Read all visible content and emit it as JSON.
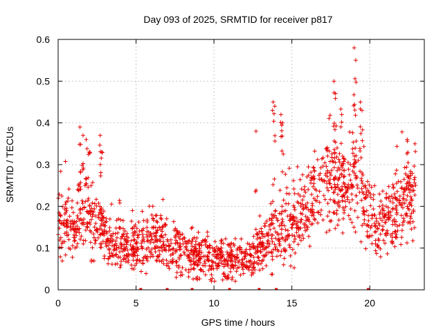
{
  "chart_data": {
    "type": "scatter",
    "title": "Day 093 of 2025, SRMTID for receiver p817",
    "xlabel": "GPS time / hours",
    "ylabel": "SRMTID / TECUs",
    "xlim": [
      0,
      23.5
    ],
    "ylim": [
      0,
      0.6
    ],
    "xticks": [
      0,
      5,
      10,
      15,
      20
    ],
    "xtick_labels": [
      "0",
      "5",
      "10",
      "15",
      "20"
    ],
    "yticks": [
      0,
      0.1,
      0.2,
      0.3,
      0.4,
      0.5,
      0.6
    ],
    "ytick_labels": [
      "0",
      "0.1",
      "0.2",
      "0.3",
      "0.4",
      "0.5",
      "0.6"
    ],
    "grid": true,
    "marker": "+",
    "color": "#e60000",
    "trend_hours": [
      0,
      0.5,
      1,
      1.5,
      2,
      2.5,
      3,
      3.5,
      4,
      4.5,
      5,
      5.5,
      6,
      6.5,
      7,
      7.5,
      8,
      8.5,
      9,
      9.5,
      10,
      10.5,
      11,
      11.5,
      12,
      12.5,
      13,
      13.5,
      14,
      14.5,
      15,
      15.5,
      16,
      16.5,
      17,
      17.5,
      18,
      18.5,
      19,
      19.5,
      20,
      20.5,
      21,
      21.5,
      22,
      22.5
    ],
    "trend_values": [
      0.16,
      0.15,
      0.14,
      0.2,
      0.17,
      0.15,
      0.13,
      0.11,
      0.12,
      0.11,
      0.1,
      0.1,
      0.12,
      0.12,
      0.11,
      0.1,
      0.1,
      0.09,
      0.08,
      0.08,
      0.08,
      0.08,
      0.07,
      0.07,
      0.07,
      0.08,
      0.1,
      0.12,
      0.13,
      0.14,
      0.15,
      0.18,
      0.21,
      0.23,
      0.25,
      0.27,
      0.25,
      0.24,
      0.26,
      0.22,
      0.18,
      0.15,
      0.16,
      0.18,
      0.2,
      0.2
    ],
    "spikes": [
      {
        "x": 1.4,
        "y": 0.39
      },
      {
        "x": 1.6,
        "y": 0.37
      },
      {
        "x": 1.8,
        "y": 0.36
      },
      {
        "x": 2.0,
        "y": 0.33
      },
      {
        "x": 2.7,
        "y": 0.37
      },
      {
        "x": 2.8,
        "y": 0.33
      },
      {
        "x": 12.7,
        "y": 0.38
      },
      {
        "x": 13.8,
        "y": 0.45
      },
      {
        "x": 13.9,
        "y": 0.44
      },
      {
        "x": 14.3,
        "y": 0.42
      },
      {
        "x": 14.4,
        "y": 0.4
      },
      {
        "x": 17.7,
        "y": 0.5
      },
      {
        "x": 17.8,
        "y": 0.47
      },
      {
        "x": 18.2,
        "y": 0.42
      },
      {
        "x": 19.0,
        "y": 0.58
      },
      {
        "x": 19.1,
        "y": 0.55
      },
      {
        "x": 19.4,
        "y": 0.45
      },
      {
        "x": 19.5,
        "y": 0.43
      },
      {
        "x": 22.4,
        "y": 0.36
      },
      {
        "x": 22.9,
        "y": 0.35
      }
    ],
    "rug_hours": [
      5.3,
      7.0,
      8.6,
      11.0,
      12.9,
      14.0,
      19.9
    ]
  }
}
